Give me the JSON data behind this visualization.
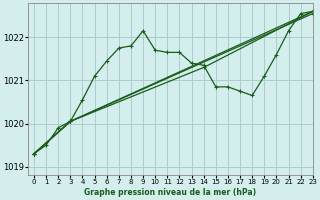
{
  "title": "Graphe pression niveau de la mer (hPa)",
  "bg_color": "#d4eeee",
  "grid_color": "#aacccc",
  "line_color": "#1a5c1a",
  "xlim": [
    -0.5,
    23
  ],
  "ylim": [
    1018.8,
    1022.8
  ],
  "yticks": [
    1019,
    1020,
    1021,
    1022
  ],
  "xticks": [
    0,
    1,
    2,
    3,
    4,
    5,
    6,
    7,
    8,
    9,
    10,
    11,
    12,
    13,
    14,
    15,
    16,
    17,
    18,
    19,
    20,
    21,
    22,
    23
  ],
  "series": [
    {
      "x": [
        0,
        1,
        2,
        3,
        4,
        5,
        6,
        7,
        8,
        9,
        10,
        11,
        12,
        13,
        14,
        15,
        16,
        17,
        18,
        19,
        20,
        21,
        22,
        23
      ],
      "y": [
        1019.3,
        1019.5,
        1019.9,
        1020.05,
        1020.55,
        1021.1,
        1021.45,
        1021.75,
        1021.8,
        1022.15,
        1021.7,
        1021.65,
        1021.65,
        1021.4,
        1021.35,
        1020.85,
        1020.85,
        1020.75,
        1020.65,
        1021.1,
        1021.6,
        1022.15,
        1022.55,
        1022.6
      ]
    },
    {
      "x": [
        0,
        3,
        23
      ],
      "y": [
        1019.3,
        1020.05,
        1022.6
      ]
    },
    {
      "x": [
        0,
        3,
        23
      ],
      "y": [
        1019.3,
        1020.05,
        1022.55
      ]
    },
    {
      "x": [
        0,
        3,
        14,
        23
      ],
      "y": [
        1019.3,
        1020.05,
        1021.3,
        1022.6
      ]
    }
  ]
}
